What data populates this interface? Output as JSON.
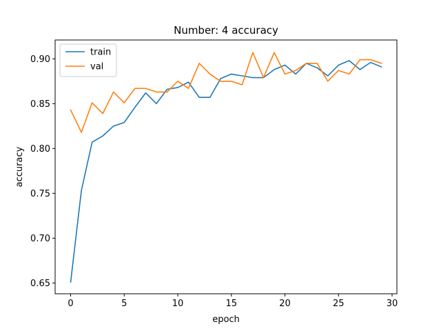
{
  "chart_data": {
    "type": "line",
    "title": "Number: 4 accuracy",
    "xlabel": "epoch",
    "ylabel": "accuracy",
    "xlim": [
      -1.45,
      30.45
    ],
    "ylim": [
      0.638,
      0.921
    ],
    "xticks": [
      0,
      5,
      10,
      15,
      20,
      25,
      30
    ],
    "yticks": [
      0.65,
      0.7,
      0.75,
      0.8,
      0.85,
      0.9
    ],
    "xtick_labels": [
      "0",
      "5",
      "10",
      "15",
      "20",
      "25",
      "30"
    ],
    "ytick_labels": [
      "0.65",
      "0.70",
      "0.75",
      "0.80",
      "0.85",
      "0.90"
    ],
    "grid": false,
    "legend_position": "top-left",
    "x": [
      0,
      1,
      2,
      3,
      4,
      5,
      6,
      7,
      8,
      9,
      10,
      11,
      12,
      13,
      14,
      15,
      16,
      17,
      18,
      19,
      20,
      21,
      22,
      23,
      24,
      25,
      26,
      27,
      28,
      29
    ],
    "series": [
      {
        "name": "train",
        "color": "#1f77b4",
        "values": [
          0.651,
          0.753,
          0.807,
          0.814,
          0.825,
          0.829,
          0.846,
          0.862,
          0.85,
          0.866,
          0.868,
          0.874,
          0.857,
          0.857,
          0.878,
          0.883,
          0.881,
          0.879,
          0.879,
          0.888,
          0.893,
          0.883,
          0.895,
          0.89,
          0.881,
          0.893,
          0.898,
          0.888,
          0.896,
          0.891
        ]
      },
      {
        "name": "val",
        "color": "#ff7f0e",
        "values": [
          0.843,
          0.818,
          0.851,
          0.839,
          0.863,
          0.851,
          0.867,
          0.867,
          0.863,
          0.863,
          0.875,
          0.867,
          0.895,
          0.883,
          0.875,
          0.875,
          0.871,
          0.907,
          0.879,
          0.907,
          0.883,
          0.887,
          0.895,
          0.895,
          0.875,
          0.887,
          0.883,
          0.899,
          0.899,
          0.895
        ]
      }
    ]
  }
}
